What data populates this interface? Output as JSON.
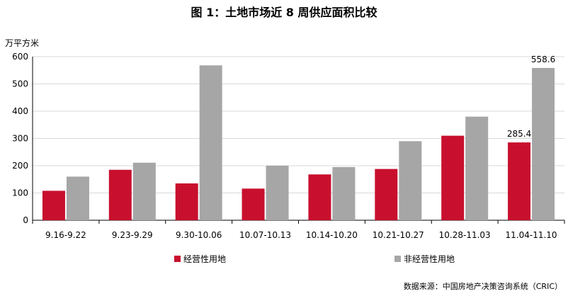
{
  "title": "图 1：土地市场近 8 周供应面积比较",
  "unit": "万平方米",
  "source": "数据来源：中国房地产决策咨询系统（CRIC）",
  "colors": {
    "series0": "#c8102e",
    "series1": "#a6a6a6",
    "grid": "#d9d9d9",
    "axis": "#000000"
  },
  "chart_data": {
    "type": "bar",
    "categories": [
      "9.16-9.22",
      "9.23-9.29",
      "9.30-10.06",
      "10.07-10.13",
      "10.14-10.20",
      "10.21-10.27",
      "10.28-11.03",
      "11.04-11.10"
    ],
    "series": [
      {
        "name": "经营性用地",
        "values": [
          108,
          185,
          135,
          116,
          168,
          188,
          310,
          285.4
        ]
      },
      {
        "name": "非经营性用地",
        "values": [
          160,
          211,
          568,
          200,
          195,
          290,
          380,
          558.6
        ]
      }
    ],
    "ylabel": "万平方米",
    "ylim": [
      0,
      600
    ],
    "yticks": [
      0,
      100,
      200,
      300,
      400,
      500,
      600
    ],
    "grid": true,
    "legend_position": "bottom",
    "data_labels": [
      {
        "series": 0,
        "index": 7,
        "text": "285.4"
      },
      {
        "series": 1,
        "index": 7,
        "text": "558.6"
      }
    ]
  }
}
